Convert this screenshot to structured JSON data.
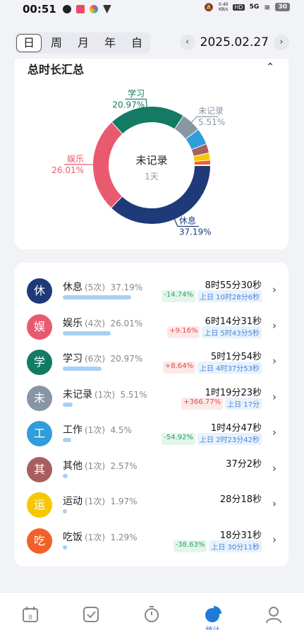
{
  "status": {
    "time": "00:51",
    "netrate_top": "0.40",
    "netrate_bottom": "KB/s",
    "hd": "HD",
    "signal": "5G",
    "battery": "30"
  },
  "tabs": [
    "日",
    "周",
    "月",
    "年",
    "自"
  ],
  "date": {
    "prev": "‹",
    "value": "2025.02.27",
    "next": "›"
  },
  "summary": {
    "title": "总时长汇总",
    "center_label": "未记录",
    "center_sub": "1天"
  },
  "chart_data": {
    "type": "pie",
    "slices": [
      {
        "label": "休息",
        "value": 37.19,
        "pct": "37.19%",
        "color": "#1e3a78"
      },
      {
        "label": "娱乐",
        "value": 26.01,
        "pct": "26.01%",
        "color": "#ea5a6f"
      },
      {
        "label": "学习",
        "value": 20.97,
        "pct": "20.97%",
        "color": "#137a63"
      },
      {
        "label": "未记录",
        "value": 5.51,
        "pct": "5.51%",
        "color": "#8896a4"
      },
      {
        "label": "工作",
        "value": 4.5,
        "pct": "",
        "color": "#2f9ed9"
      },
      {
        "label": "其他",
        "value": 2.57,
        "pct": "",
        "color": "#a85e5e"
      },
      {
        "label": "运动",
        "value": 1.97,
        "pct": "",
        "color": "#f6c800"
      },
      {
        "label": "吃饭",
        "value": 1.29,
        "pct": "",
        "color": "#f0612a"
      }
    ]
  },
  "rows": [
    {
      "icon": "休",
      "name": "休息",
      "count": "(5次)",
      "pct": "37.19%",
      "fill": 0.3719,
      "duration": "8时55分30秒",
      "delta": "-14.74%",
      "delta_dir": "down",
      "prev": "上日 10时28分6秒",
      "color": "#1e3a78"
    },
    {
      "icon": "娱",
      "name": "娱乐",
      "count": "(4次)",
      "pct": "26.01%",
      "fill": 0.2601,
      "duration": "6时14分31秒",
      "delta": "+9.16%",
      "delta_dir": "up",
      "prev": "上日 5时43分5秒",
      "color": "#ea5a6f"
    },
    {
      "icon": "学",
      "name": "学习",
      "count": "(6次)",
      "pct": "20.97%",
      "fill": 0.2097,
      "duration": "5时1分54秒",
      "delta": "+8.64%",
      "delta_dir": "up",
      "prev": "上日 4时37分53秒",
      "color": "#137a63"
    },
    {
      "icon": "未",
      "name": "未记录",
      "count": "(1次)",
      "pct": "5.51%",
      "fill": 0.0551,
      "duration": "1时19分23秒",
      "delta": "+366.77%",
      "delta_dir": "up",
      "prev": "上日 17分",
      "color": "#8896a4"
    },
    {
      "icon": "工",
      "name": "工作",
      "count": "(1次)",
      "pct": "4.5%",
      "fill": 0.045,
      "duration": "1时4分47秒",
      "delta": "-54.92%",
      "delta_dir": "down",
      "prev": "上日 2时23分42秒",
      "color": "#2f9ed9"
    },
    {
      "icon": "其",
      "name": "其他",
      "count": "(1次)",
      "pct": "2.57%",
      "fill": 0.0257,
      "duration": "37分2秒",
      "delta": "",
      "delta_dir": "",
      "prev": "",
      "color": "#a85e5e"
    },
    {
      "icon": "运",
      "name": "运动",
      "count": "(1次)",
      "pct": "1.97%",
      "fill": 0.0197,
      "duration": "28分18秒",
      "delta": "",
      "delta_dir": "",
      "prev": "",
      "color": "#f6c800"
    },
    {
      "icon": "吃",
      "name": "吃饭",
      "count": "(1次)",
      "pct": "1.29%",
      "fill": 0.0129,
      "duration": "18分31秒",
      "delta": "-38.63%",
      "delta_dir": "down",
      "prev": "上日 30分11秒",
      "color": "#f0612a"
    }
  ],
  "nav": {
    "stats_label": "统计",
    "active_color": "#1f7ad8"
  }
}
